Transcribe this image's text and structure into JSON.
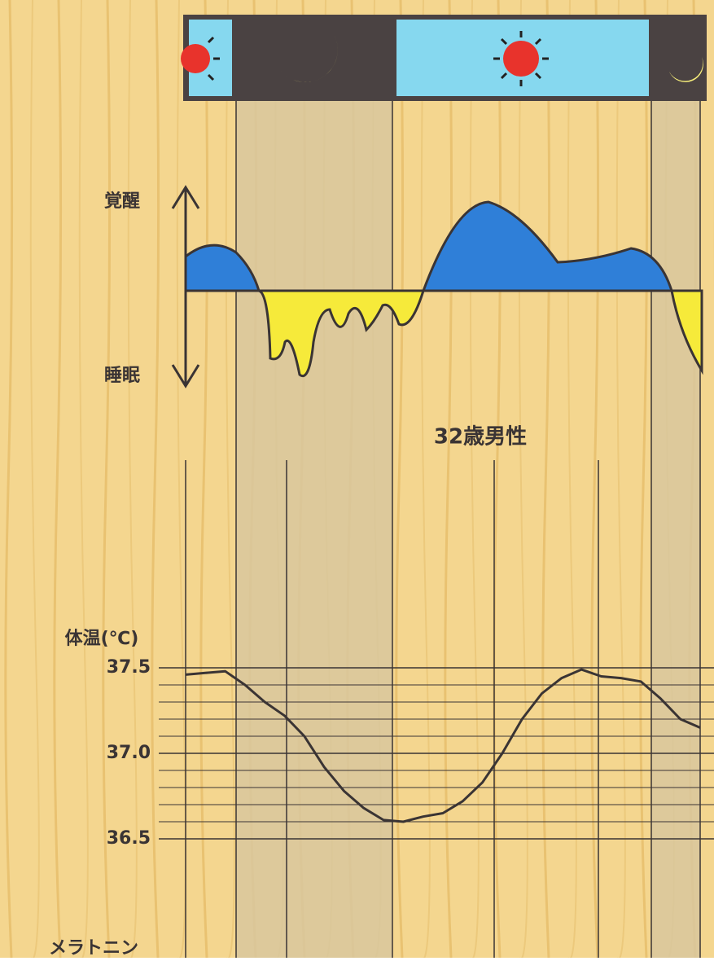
{
  "chart_data": {
    "type": "line",
    "title": "32歳男性",
    "ylabel": "体温(℃)",
    "annotations": [
      "覚醒",
      "睡眠",
      "メラトニン"
    ],
    "categories": [
      null,
      null,
      null,
      null,
      null,
      null,
      null,
      null,
      null,
      null,
      null,
      null,
      null,
      null,
      null,
      null,
      null,
      null,
      null,
      null,
      null,
      null,
      null,
      null,
      null,
      null,
      null
    ],
    "values": [
      37.46,
      37.47,
      37.48,
      37.4,
      37.3,
      37.22,
      37.1,
      36.92,
      36.78,
      36.68,
      36.61,
      36.6,
      36.63,
      36.65,
      36.72,
      36.83,
      37.0,
      37.2,
      37.35,
      37.44,
      37.49,
      37.45,
      37.44,
      37.42,
      37.32,
      37.2,
      37.15
    ],
    "color": "#3a3434",
    "ylim": [
      36.5,
      37.5
    ],
    "yticks": [
      37.5,
      {
        "value": 37.0,
        "label": "37.0"
      },
      36.5
    ],
    "minor_yticks": [
      37.4,
      37.3,
      37.2,
      37.1,
      36.9,
      36.8,
      36.7,
      36.6
    ],
    "grid": true
  }
}
